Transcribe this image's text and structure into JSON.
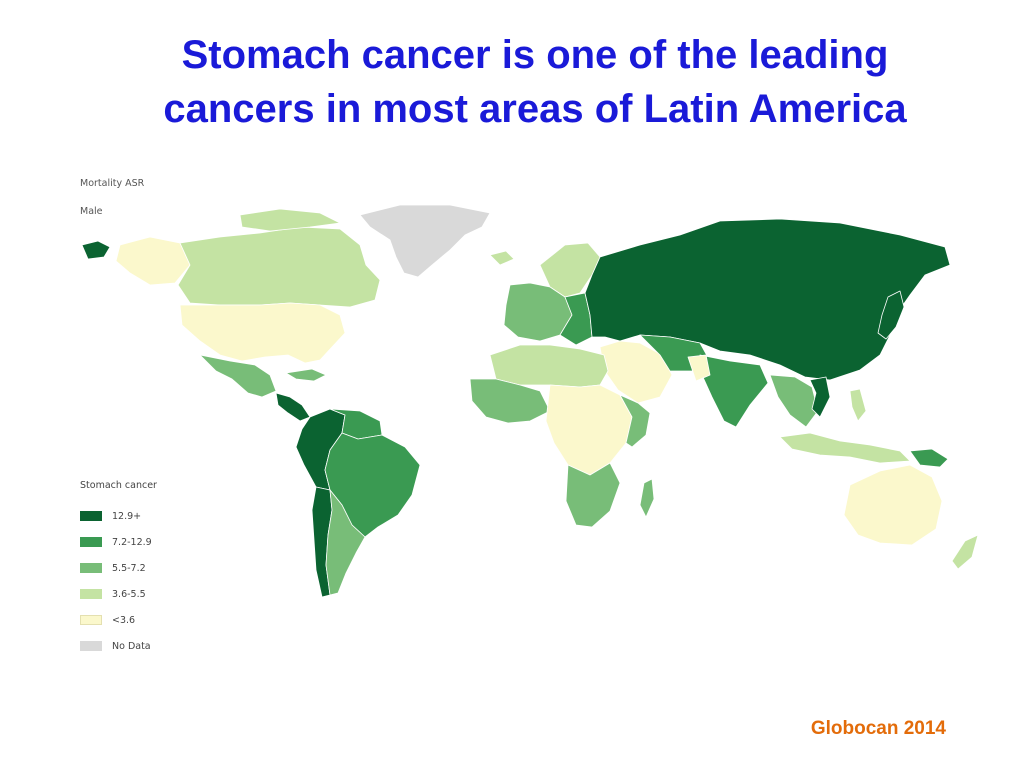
{
  "slide": {
    "title_line1": "Stomach cancer is one of the leading",
    "title_line2": "cancers in most areas of Latin America",
    "source": "Globocan 2014"
  },
  "map": {
    "metric": "Mortality ASR",
    "sex": "Male",
    "legend_title": "Stomach cancer",
    "legend": [
      {
        "label": "12.9+",
        "color": "#0b6331"
      },
      {
        "label": "7.2-12.9",
        "color": "#3a9a52"
      },
      {
        "label": "5.5-7.2",
        "color": "#78bd78"
      },
      {
        "label": "3.6-5.5",
        "color": "#c4e3a3"
      },
      {
        "label": "<3.6",
        "color": "#fbf8cc"
      },
      {
        "label": "No Data",
        "color": "#d9d9d9"
      }
    ]
  }
}
